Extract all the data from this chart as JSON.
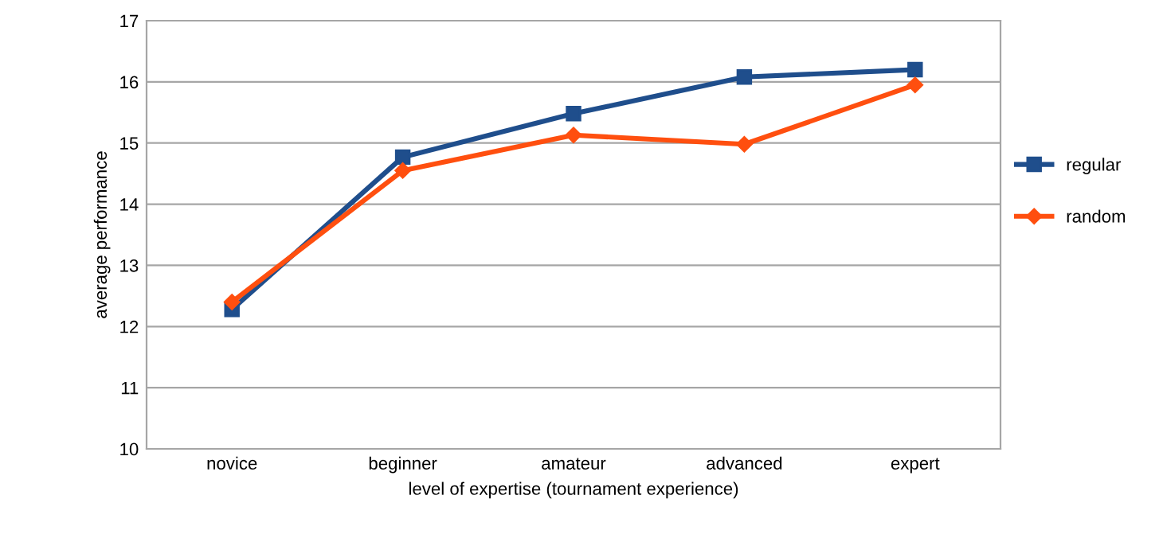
{
  "chart_data": {
    "type": "line",
    "xlabel": "level of expertise (tournament experience)",
    "ylabel": "average performance",
    "categories": [
      "novice",
      "beginner",
      "amateur",
      "advanced",
      "expert"
    ],
    "series": [
      {
        "name": "regular",
        "color": "#1f4e8c",
        "marker": "square",
        "values": [
          12.28,
          14.77,
          15.48,
          16.08,
          16.2
        ]
      },
      {
        "name": "random",
        "color": "#ff4f0f",
        "marker": "diamond",
        "values": [
          12.4,
          14.55,
          15.13,
          14.98,
          15.95
        ]
      }
    ],
    "ylim": [
      10,
      17
    ],
    "yticks": [
      10,
      11,
      12,
      13,
      14,
      15,
      16,
      17
    ],
    "grid": "y",
    "legend": "right"
  }
}
